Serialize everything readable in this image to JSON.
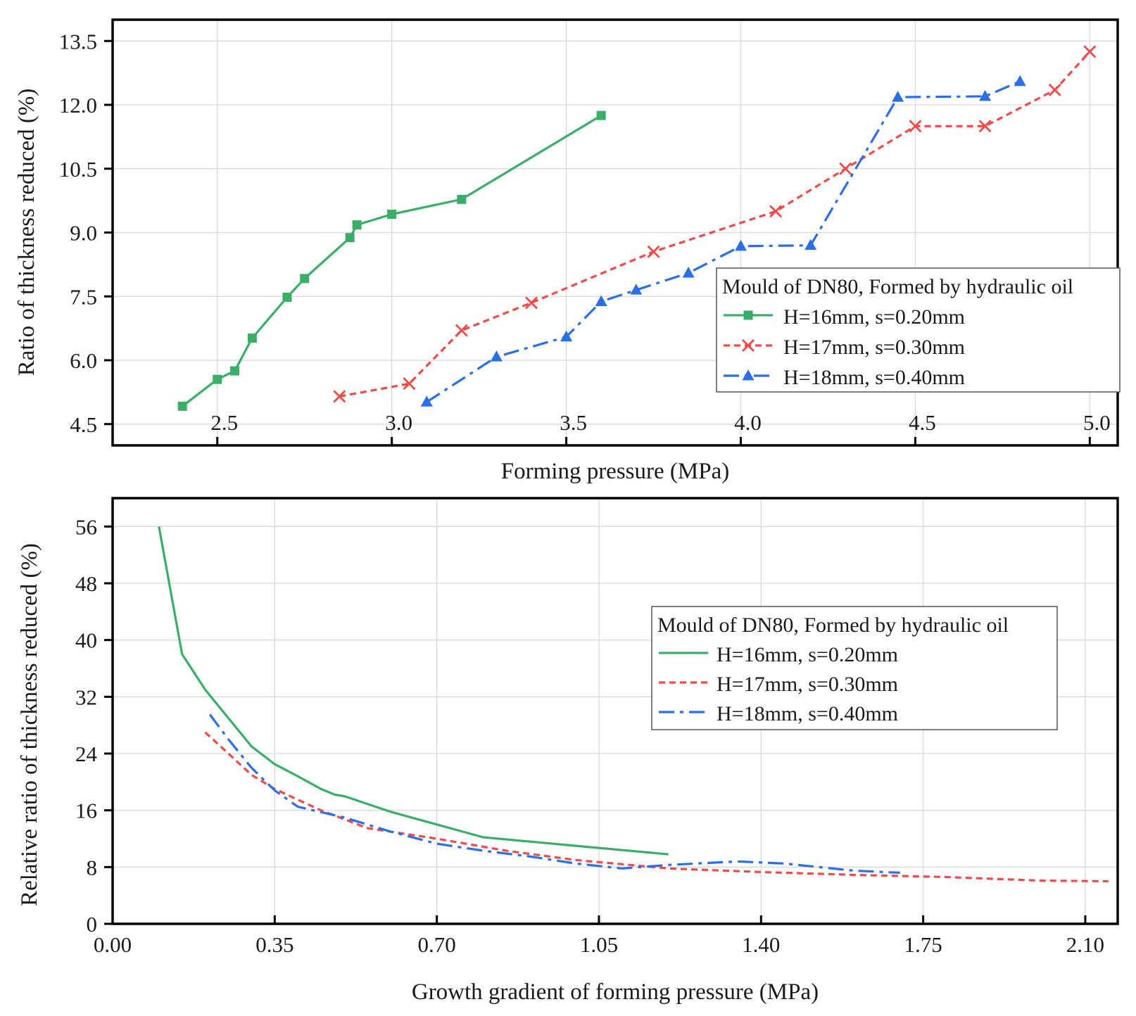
{
  "chart_data": [
    {
      "type": "line",
      "xlabel": "Forming pressure (MPa)",
      "ylabel": "Ratio of thickness reduced (%)",
      "xlim": [
        2.2,
        5.08
      ],
      "ylim": [
        4.0,
        14.0
      ],
      "xticks": [
        2.5,
        3.0,
        3.5,
        4.0,
        4.5,
        5.0
      ],
      "xtick_labels": [
        "2.5",
        "3.0",
        "3.5",
        "4.0",
        "4.5",
        "5.0"
      ],
      "yticks": [
        4.5,
        6.0,
        7.5,
        9.0,
        10.5,
        12.0,
        13.5
      ],
      "ytick_labels": [
        "4.5",
        "6.0",
        "7.5",
        "9.0",
        "10.5",
        "12.0",
        "13.5"
      ],
      "grid": true,
      "legend": {
        "title": "Mould of DN80, Formed by hydraulic oil",
        "position": "center-right"
      },
      "series": [
        {
          "name": "H=16mm, s=0.20mm",
          "color": "#3aae68",
          "dash": "solid",
          "marker": "square",
          "x": [
            2.4,
            2.5,
            2.55,
            2.6,
            2.7,
            2.75,
            2.88,
            2.9,
            3.0,
            3.2,
            3.6
          ],
          "y": [
            4.92,
            5.55,
            5.75,
            6.52,
            7.48,
            7.92,
            8.88,
            9.18,
            9.43,
            9.78,
            11.75
          ]
        },
        {
          "name": "H=17mm, s=0.30mm",
          "color": "#f04a4a",
          "dash": "dotted",
          "marker": "x",
          "x": [
            2.85,
            3.05,
            3.2,
            3.4,
            3.75,
            4.1,
            4.3,
            4.5,
            4.7,
            4.9,
            5.0
          ],
          "y": [
            5.15,
            5.45,
            6.7,
            7.35,
            8.55,
            9.5,
            10.5,
            11.5,
            11.5,
            12.35,
            13.25
          ]
        },
        {
          "name": "H=18mm, s=0.40mm",
          "color": "#2b6ee6",
          "dash": "dash-dot",
          "marker": "triangle",
          "x": [
            3.1,
            3.3,
            3.5,
            3.6,
            3.7,
            3.85,
            4.0,
            4.2,
            4.45,
            4.7,
            4.8
          ],
          "y": [
            5.02,
            6.08,
            6.55,
            7.38,
            7.65,
            8.05,
            8.68,
            8.7,
            12.18,
            12.2,
            12.55
          ]
        }
      ]
    },
    {
      "type": "line",
      "xlabel": "Growth gradient of forming pressure (MPa)",
      "ylabel": "Relative ratio of thickness reduced (%)",
      "xlim": [
        0.0,
        2.17
      ],
      "ylim": [
        0,
        60
      ],
      "xticks": [
        0.0,
        0.35,
        0.7,
        1.05,
        1.4,
        1.75,
        2.1
      ],
      "xtick_labels": [
        "0.00",
        "0.35",
        "0.70",
        "1.05",
        "1.40",
        "1.75",
        "2.10"
      ],
      "yticks": [
        0,
        8,
        16,
        24,
        32,
        40,
        48,
        56
      ],
      "ytick_labels": [
        "0",
        "8",
        "16",
        "24",
        "32",
        "40",
        "48",
        "56"
      ],
      "grid": true,
      "legend": {
        "title": "Mould of DN80, Formed by hydraulic oil",
        "position": "upper-right"
      },
      "series": [
        {
          "name": "H=16mm, s=0.20mm",
          "color": "#3aae68",
          "dash": "solid",
          "x": [
            0.1,
            0.15,
            0.2,
            0.25,
            0.3,
            0.35,
            0.4,
            0.45,
            0.48,
            0.5,
            0.6,
            0.7,
            0.8,
            1.0,
            1.2
          ],
          "y": [
            56,
            38,
            33,
            29,
            25,
            22.5,
            20.8,
            19,
            18.2,
            18,
            15.8,
            14,
            12.2,
            11,
            9.8
          ]
        },
        {
          "name": "H=17mm, s=0.30mm",
          "color": "#f04a4a",
          "dash": "dotted",
          "x": [
            0.2,
            0.25,
            0.3,
            0.35,
            0.45,
            0.55,
            0.7,
            0.85,
            1.0,
            1.2,
            1.4,
            1.6,
            1.8,
            2.0,
            2.15
          ],
          "y": [
            27,
            24,
            21,
            19,
            16,
            13.5,
            12,
            10.3,
            9,
            7.8,
            7.3,
            6.9,
            6.6,
            6.1,
            6.0
          ]
        },
        {
          "name": "H=18mm, s=0.40mm",
          "color": "#2b6ee6",
          "dash": "dash-dot",
          "x": [
            0.21,
            0.25,
            0.3,
            0.35,
            0.4,
            0.5,
            0.6,
            0.7,
            0.8,
            0.9,
            1.0,
            1.1,
            1.2,
            1.35,
            1.45,
            1.6,
            1.7
          ],
          "y": [
            29.5,
            26,
            22,
            18.8,
            16.5,
            15,
            13,
            11.3,
            10.3,
            9.5,
            8.5,
            7.8,
            8.3,
            8.8,
            8.5,
            7.5,
            7.2
          ]
        }
      ]
    }
  ]
}
